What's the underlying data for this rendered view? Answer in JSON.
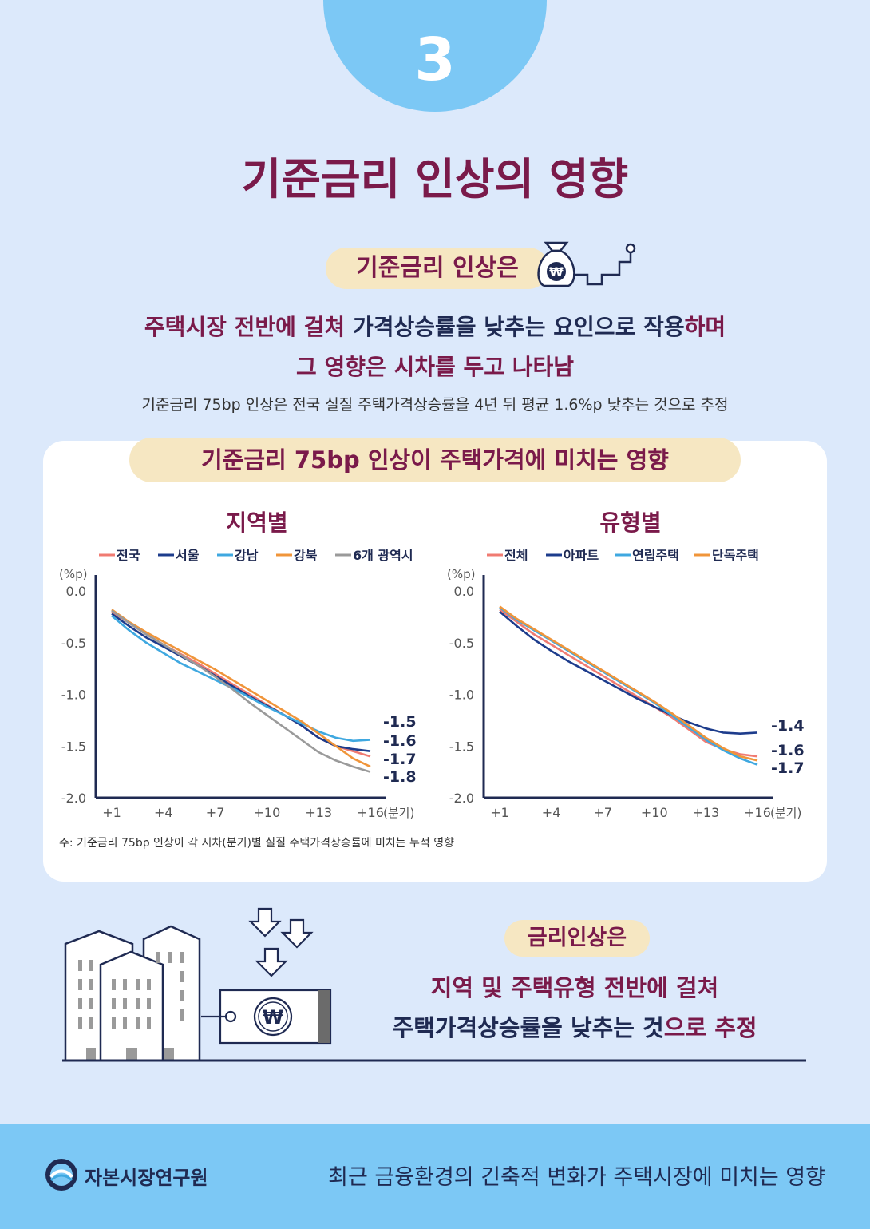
{
  "page_number": "3",
  "title": "기준금리 인상의 영향",
  "intro_pill": "기준금리 인상은",
  "summary": {
    "line1_a": "주택시장 전반에 걸쳐 ",
    "line1_b": "가격상승률을 낮추는 요인으로 작용",
    "line1_c": "하며",
    "line2": "그 영향은 시차를 두고 나타남",
    "note": "기준금리 75bp 인상은 전국 실질 주택가격상승률을 4년 뒤 평균 1.6%p 낮추는 것으로 추정"
  },
  "currency_symbol": "₩",
  "chart_section_title": "기준금리 75bp 인상이 주택가격에 미치는 영향",
  "footnote": "주: 기준금리 75bp 인상이 각 시차(분기)별 실질 주택가격상승률에 미치는 누적 영향",
  "chart_data": [
    {
      "type": "line",
      "title": "지역별",
      "ylabel": "(%p)",
      "xlabel": "(분기)",
      "ylim": [
        -2.0,
        0.0
      ],
      "yticks": [
        "0.0",
        "-0.5",
        "-1.0",
        "-1.5",
        "-2.0"
      ],
      "xticks": [
        "+1",
        "+4",
        "+7",
        "+10",
        "+13",
        "+16"
      ],
      "legend_position": "top",
      "x": [
        1,
        2,
        3,
        4,
        5,
        6,
        7,
        8,
        9,
        10,
        11,
        12,
        13,
        14,
        15,
        16
      ],
      "series": [
        {
          "name": "전국",
          "color": "#f07b72",
          "values": [
            -0.2,
            -0.31,
            -0.42,
            -0.52,
            -0.61,
            -0.7,
            -0.8,
            -0.9,
            -1.0,
            -1.1,
            -1.2,
            -1.3,
            -1.42,
            -1.5,
            -1.55,
            -1.6
          ]
        },
        {
          "name": "서울",
          "color": "#1d3c8c",
          "values": [
            -0.22,
            -0.34,
            -0.45,
            -0.54,
            -0.63,
            -0.72,
            -0.82,
            -0.92,
            -1.02,
            -1.11,
            -1.2,
            -1.3,
            -1.42,
            -1.5,
            -1.53,
            -1.55
          ]
        },
        {
          "name": "강남",
          "color": "#3fa8e0",
          "values": [
            -0.24,
            -0.38,
            -0.5,
            -0.6,
            -0.7,
            -0.78,
            -0.86,
            -0.94,
            -1.03,
            -1.12,
            -1.2,
            -1.28,
            -1.36,
            -1.42,
            -1.45,
            -1.44
          ]
        },
        {
          "name": "강북",
          "color": "#f0953a",
          "values": [
            -0.18,
            -0.3,
            -0.4,
            -0.49,
            -0.58,
            -0.67,
            -0.76,
            -0.86,
            -0.96,
            -1.06,
            -1.16,
            -1.26,
            -1.38,
            -1.5,
            -1.62,
            -1.7
          ]
        },
        {
          "name": "6개 광역시",
          "color": "#9a9a9a",
          "values": [
            -0.19,
            -0.31,
            -0.42,
            -0.52,
            -0.62,
            -0.72,
            -0.83,
            -0.95,
            -1.08,
            -1.2,
            -1.32,
            -1.44,
            -1.56,
            -1.64,
            -1.7,
            -1.75
          ]
        }
      ],
      "end_labels": [
        "-1.5",
        "-1.6",
        "-1.7",
        "-1.8"
      ]
    },
    {
      "type": "line",
      "title": "유형별",
      "ylabel": "(%p)",
      "xlabel": "(분기)",
      "ylim": [
        -2.0,
        0.0
      ],
      "yticks": [
        "0.0",
        "-0.5",
        "-1.0",
        "-1.5",
        "-2.0"
      ],
      "xticks": [
        "+1",
        "+4",
        "+7",
        "+10",
        "+13",
        "+16"
      ],
      "legend_position": "top",
      "x": [
        1,
        2,
        3,
        4,
        5,
        6,
        7,
        8,
        9,
        10,
        11,
        12,
        13,
        14,
        15,
        16
      ],
      "series": [
        {
          "name": "전체",
          "color": "#f07b72",
          "values": [
            -0.18,
            -0.3,
            -0.42,
            -0.52,
            -0.62,
            -0.72,
            -0.82,
            -0.92,
            -1.02,
            -1.12,
            -1.22,
            -1.34,
            -1.46,
            -1.53,
            -1.58,
            -1.6
          ]
        },
        {
          "name": "아파트",
          "color": "#1d3c8c",
          "values": [
            -0.2,
            -0.34,
            -0.47,
            -0.58,
            -0.68,
            -0.77,
            -0.86,
            -0.95,
            -1.04,
            -1.12,
            -1.2,
            -1.27,
            -1.33,
            -1.37,
            -1.38,
            -1.37
          ]
        },
        {
          "name": "연립주택",
          "color": "#3fa8e0",
          "values": [
            -0.16,
            -0.28,
            -0.38,
            -0.48,
            -0.58,
            -0.68,
            -0.78,
            -0.88,
            -0.98,
            -1.08,
            -1.2,
            -1.32,
            -1.44,
            -1.54,
            -1.62,
            -1.68
          ]
        },
        {
          "name": "단독주택",
          "color": "#f0953a",
          "values": [
            -0.15,
            -0.27,
            -0.37,
            -0.47,
            -0.57,
            -0.67,
            -0.77,
            -0.87,
            -0.97,
            -1.07,
            -1.18,
            -1.3,
            -1.42,
            -1.52,
            -1.6,
            -1.64
          ]
        }
      ],
      "end_labels": [
        "-1.4",
        "-1.6",
        "-1.7"
      ]
    }
  ],
  "conclusion": {
    "pill": "금리인상은",
    "line1": "지역 및 주택유형 전반에 걸쳐",
    "line2_a": "주택가격상승률을 낮추는 것",
    "line2_b": "으로 추정"
  },
  "footer": {
    "org": "자본시장연구원",
    "report_title": "최근 금융환경의 긴축적 변화가 주택시장에 미치는 영향"
  },
  "colors": {
    "maroon": "#7a1a4a",
    "navy": "#1f2a52",
    "sky": "#7cc8f5",
    "cream": "#f6e7c2",
    "bg": "#dce9fb"
  }
}
